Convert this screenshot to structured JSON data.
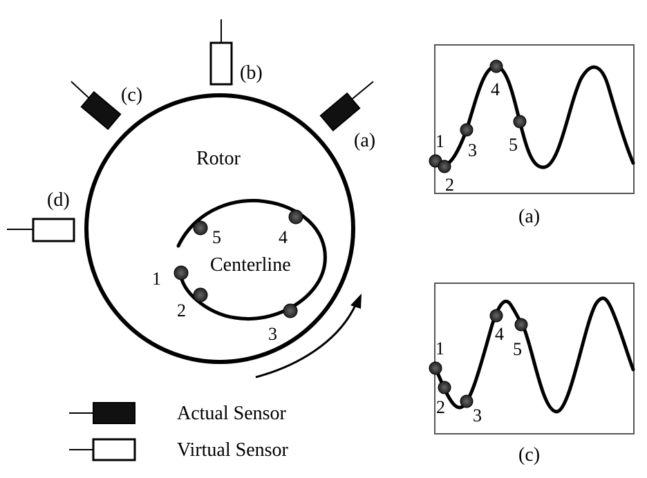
{
  "rotor": {
    "label": "Rotor",
    "centerline_label": "Centerline"
  },
  "sensors": {
    "a": "(a)",
    "b": "(b)",
    "c": "(c)",
    "d": "(d)"
  },
  "centerline_points": [
    "1",
    "2",
    "3",
    "4",
    "5"
  ],
  "legend": {
    "actual": "Actual Sensor",
    "virtual": "Virtual Sensor"
  },
  "panel_a": {
    "caption": "(a)",
    "points": [
      "1",
      "2",
      "3",
      "4",
      "5"
    ]
  },
  "panel_c": {
    "caption": "(c)",
    "points": [
      "1",
      "2",
      "3",
      "4",
      "5"
    ]
  },
  "colors": {
    "ink": "#000000",
    "frame": "#555555",
    "dot": "#333333"
  }
}
